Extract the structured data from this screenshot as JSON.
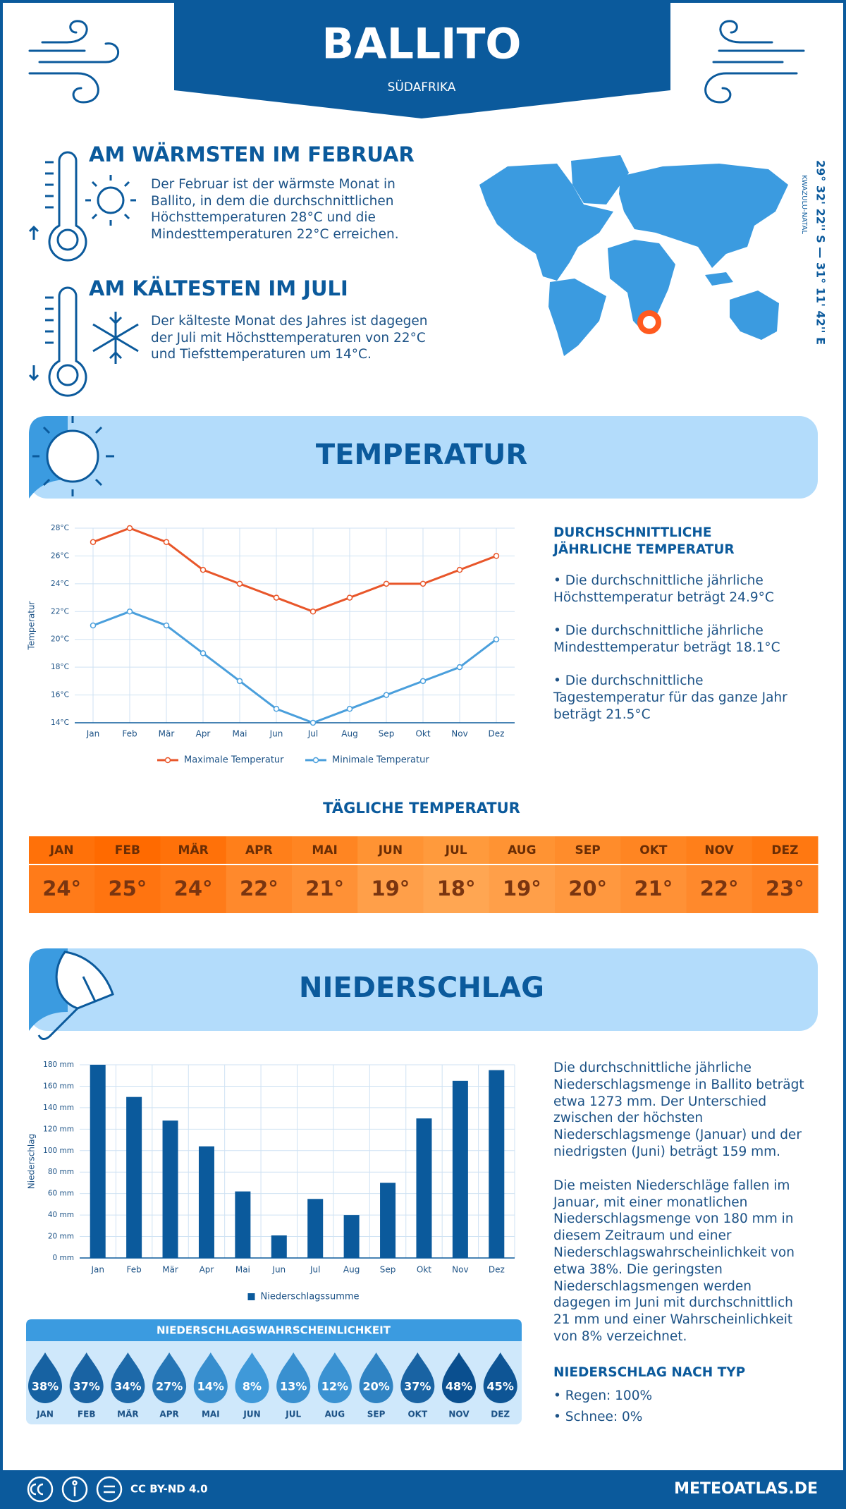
{
  "header": {
    "title": "BALLITO",
    "subtitle": "SÜDAFRIKA"
  },
  "highlights": [
    {
      "title": "AM WÄRMSTEN IM FEBRUAR",
      "text": "Der Februar ist der wärmste Monat in Ballito, in dem die durchschnittlichen Höchsttemperaturen 28°C und die Mindesttemperaturen 22°C erreichen."
    },
    {
      "title": "AM KÄLTESTEN IM JULI",
      "text": "Der kälteste Monat des Jahres ist dagegen der Juli mit Höchsttemperaturen von 22°C und Tiefsttemperaturen um 14°C."
    }
  ],
  "map": {
    "coordinates": "29° 32' 22'' S — 31° 11' 42'' E",
    "region": "KWAZULU-NATAL"
  },
  "temperature": {
    "title": "TEMPERATUR",
    "summary_title": "DURCHSCHNITTLICHE JÄHRLICHE TEMPERATUR",
    "summary": [
      "Die durchschnittliche jährliche Höchsttemperatur beträgt 24.9°C",
      "Die durchschnittliche jährliche Mindesttemperatur beträgt 18.1°C",
      "Die durchschnittliche Tagestemperatur für das ganze Jahr beträgt 21.5°C"
    ]
  },
  "chart_data": [
    {
      "type": "line",
      "categories": [
        "Jan",
        "Feb",
        "Mär",
        "Apr",
        "Mai",
        "Jun",
        "Jul",
        "Aug",
        "Sep",
        "Okt",
        "Nov",
        "Dez"
      ],
      "y_label": "Temperatur",
      "series": [
        {
          "name": "Maximale Temperatur",
          "color": "#e8562a",
          "values": [
            27,
            28,
            27,
            25,
            24,
            23,
            22,
            23,
            24,
            24,
            25,
            26
          ]
        },
        {
          "name": "Minimale Temperatur",
          "color": "#4a9fdc",
          "values": [
            21,
            22,
            21,
            19,
            17,
            15,
            14,
            15,
            16,
            17,
            18,
            20
          ]
        }
      ],
      "ylim": [
        14,
        28
      ],
      "yticks": [
        {
          "value": 14,
          "label": "14°C"
        },
        {
          "value": 16,
          "label": "16°C"
        },
        {
          "value": 18,
          "label": "18°C"
        },
        {
          "value": 20,
          "label": "20°C"
        },
        {
          "value": 22,
          "label": "22°C"
        },
        {
          "value": 24,
          "label": "24°C"
        },
        {
          "value": 26,
          "label": "26°C"
        },
        {
          "value": 28,
          "label": "28°C"
        }
      ],
      "grid": true,
      "legend": "bottom"
    },
    {
      "type": "bar",
      "categories": [
        "Jan",
        "Feb",
        "Mär",
        "Apr",
        "Mai",
        "Jun",
        "Jul",
        "Aug",
        "Sep",
        "Okt",
        "Nov",
        "Dez"
      ],
      "y_label": "Niederschlag",
      "series": [
        {
          "name": "Niederschlagssumme",
          "color": "#0b5a9c",
          "values": [
            180,
            150,
            128,
            104,
            62,
            21,
            55,
            40,
            70,
            130,
            165,
            175
          ]
        }
      ],
      "ylim": [
        0,
        180
      ],
      "yticks": [
        {
          "value": 0,
          "label": "0 mm"
        },
        {
          "value": 20,
          "label": "20 mm"
        },
        {
          "value": 40,
          "label": "40 mm"
        },
        {
          "value": 60,
          "label": "60 mm"
        },
        {
          "value": 80,
          "label": "80 mm"
        },
        {
          "value": 100,
          "label": "100 mm"
        },
        {
          "value": 120,
          "label": "120 mm"
        },
        {
          "value": 140,
          "label": "140 mm"
        },
        {
          "value": 160,
          "label": "160 mm"
        },
        {
          "value": 180,
          "label": "180 mm"
        }
      ],
      "grid": true,
      "legend": "bottom"
    }
  ],
  "daily_temperature": {
    "title": "TÄGLICHE TEMPERATUR",
    "months": [
      "JAN",
      "FEB",
      "MÄR",
      "APR",
      "MAI",
      "JUN",
      "JUL",
      "AUG",
      "SEP",
      "OKT",
      "NOV",
      "DEZ"
    ],
    "values": [
      24,
      25,
      24,
      22,
      21,
      19,
      18,
      19,
      20,
      21,
      22,
      23
    ],
    "value_labels": [
      "24°",
      "25°",
      "24°",
      "22°",
      "21°",
      "19°",
      "18°",
      "19°",
      "20°",
      "21°",
      "22°",
      "23°"
    ]
  },
  "precipitation": {
    "title": "NIEDERSCHLAG",
    "text": [
      "Die durchschnittliche jährliche Niederschlagsmenge in Ballito beträgt etwa 1273 mm. Der Unterschied zwischen der höchsten Niederschlagsmenge (Januar) und der niedrigsten (Juni) beträgt 159 mm.",
      "Die meisten Niederschläge fallen im Januar, mit einer monatlichen Niederschlagsmenge von 180 mm in diesem Zeitraum und einer Niederschlagswahrscheinlichkeit von etwa 38%. Die geringsten Niederschlagsmengen werden dagegen im Juni mit durchschnittlich 21 mm und einer Wahrscheinlichkeit von 8% verzeichnet."
    ],
    "type_title": "NIEDERSCHLAG NACH TYP",
    "types": [
      "Regen: 100%",
      "Schnee: 0%"
    ]
  },
  "probability": {
    "title": "NIEDERSCHLAGSWAHRSCHEINLICHKEIT",
    "months": [
      "JAN",
      "FEB",
      "MÄR",
      "APR",
      "MAI",
      "JUN",
      "JUL",
      "AUG",
      "SEP",
      "OKT",
      "NOV",
      "DEZ"
    ],
    "values": [
      38,
      37,
      34,
      27,
      14,
      8,
      13,
      12,
      20,
      37,
      48,
      45
    ],
    "value_labels": [
      "38%",
      "37%",
      "34%",
      "27%",
      "14%",
      "8%",
      "13%",
      "12%",
      "20%",
      "37%",
      "48%",
      "45%"
    ]
  },
  "footer": {
    "license": "CC BY-ND 4.0",
    "site": "METEOATLAS.DE"
  }
}
